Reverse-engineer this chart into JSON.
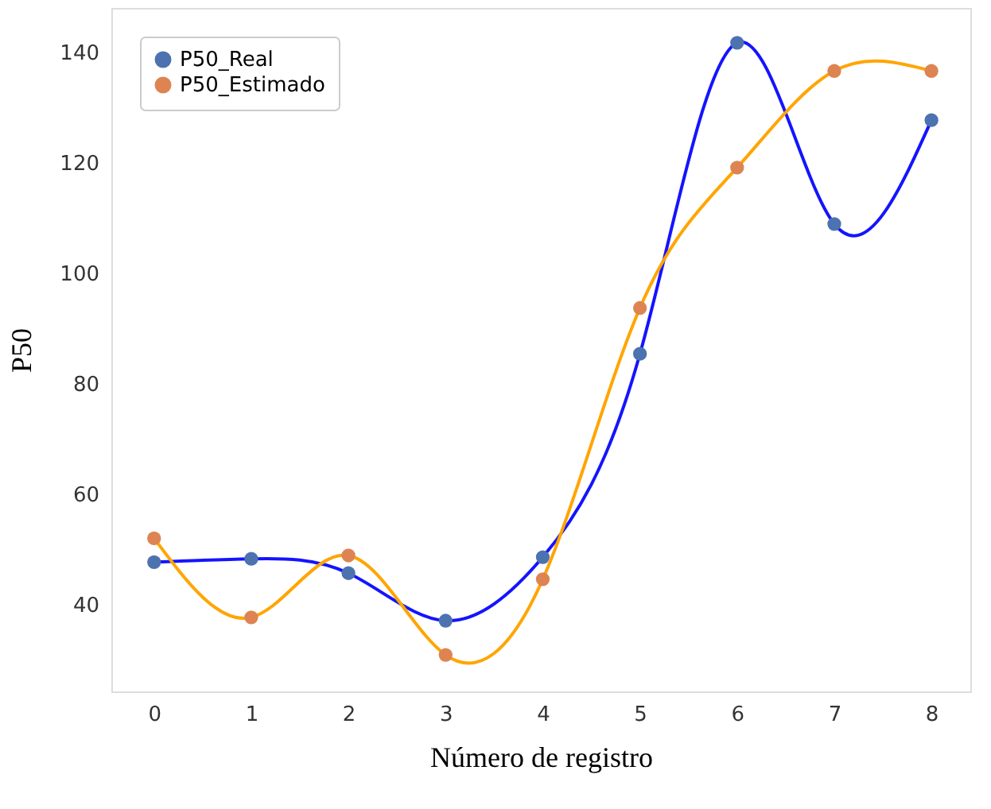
{
  "chart_data": {
    "type": "scatter",
    "xlabel": "Número de registro",
    "ylabel": "P50",
    "x": [
      0,
      1,
      2,
      3,
      4,
      5,
      6,
      7,
      8
    ],
    "xlim": [
      -0.44,
      8.4
    ],
    "xticks": [
      0,
      1,
      2,
      3,
      4,
      5,
      6,
      7,
      8
    ],
    "ylim": [
      24.3,
      148
    ],
    "yticks": [
      40,
      60,
      80,
      100,
      120,
      140
    ],
    "grid": false,
    "legend": "top left",
    "series": [
      {
        "type": "line",
        "color": "#1414ff",
        "line_style": "solid",
        "values": [
          47.7,
          48.3,
          45.7,
          37.1,
          48.6,
          85.4,
          141.7,
          108.9,
          127.7
        ]
      },
      {
        "type": "line",
        "color": "#ffa500",
        "line_style": "solid",
        "values": [
          52.0,
          37.7,
          48.9,
          30.9,
          44.6,
          93.7,
          119.1,
          136.6,
          136.6
        ]
      },
      {
        "name": "P50_Real",
        "color": "#4c72b0",
        "marker": "circle",
        "values": [
          47.7,
          48.3,
          45.7,
          37.1,
          48.6,
          85.4,
          141.7,
          108.9,
          127.7
        ]
      },
      {
        "name": "P50_Estimado",
        "color": "#dd8452",
        "marker": "circle",
        "values": [
          52.0,
          37.7,
          48.9,
          30.9,
          44.6,
          93.7,
          119.1,
          136.6,
          136.6
        ]
      }
    ]
  }
}
